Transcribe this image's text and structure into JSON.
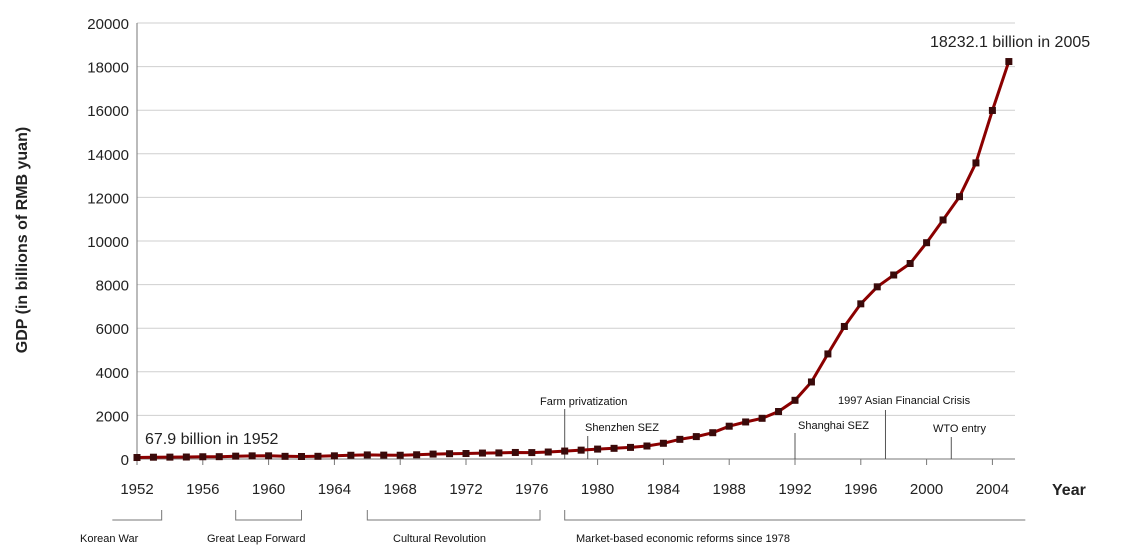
{
  "chart_data": {
    "type": "line",
    "xlabel": "Year",
    "ylabel": "GDP (in billions of RMB yuan)",
    "ylim": [
      0,
      20000
    ],
    "yticks": [
      0,
      2000,
      4000,
      6000,
      8000,
      10000,
      12000,
      14000,
      16000,
      18000,
      20000
    ],
    "xlim": [
      1952,
      2005
    ],
    "xticks": [
      1952,
      1956,
      1960,
      1964,
      1968,
      1972,
      1976,
      1980,
      1984,
      1988,
      1992,
      1996,
      2000,
      2004
    ],
    "grid": "horizontal",
    "series": [
      {
        "color": "#8b0000",
        "x": [
          1952,
          1953,
          1954,
          1955,
          1956,
          1957,
          1958,
          1959,
          1960,
          1961,
          1962,
          1963,
          1964,
          1965,
          1966,
          1967,
          1968,
          1969,
          1970,
          1971,
          1972,
          1973,
          1974,
          1975,
          1976,
          1977,
          1978,
          1979,
          1980,
          1981,
          1982,
          1983,
          1984,
          1985,
          1986,
          1987,
          1988,
          1989,
          1990,
          1991,
          1992,
          1993,
          1994,
          1995,
          1996,
          1997,
          1998,
          1999,
          2000,
          2001,
          2002,
          2003,
          2004,
          2005
        ],
        "y": [
          67.9,
          82.4,
          85.9,
          91.0,
          102.8,
          106.8,
          130.7,
          143.9,
          145.7,
          122.0,
          114.9,
          123.3,
          145.4,
          171.6,
          186.8,
          177.4,
          172.3,
          193.8,
          225.3,
          242.6,
          251.8,
          272.1,
          279.0,
          299.7,
          294.4,
          320.2,
          364.5,
          406.3,
          454.6,
          489.2,
          532.3,
          596.3,
          720.8,
          901.6,
          1027.5,
          1205.9,
          1504.3,
          1699.2,
          1866.8,
          2178.2,
          2692.4,
          3533.4,
          4819.8,
          6079.4,
          7117.7,
          7897.3,
          8440.2,
          8967.7,
          9921.5,
          10965.5,
          12033.3,
          13582.3,
          15987.8,
          18232.1
        ]
      }
    ],
    "annotations": {
      "start": "67.9 billion in 1952",
      "end": "18232.1 billion in 2005",
      "events": [
        {
          "label": "Farm privatization",
          "year": 1978
        },
        {
          "label": "Shenzhen SEZ",
          "year": 1979.4
        },
        {
          "label": "1997 Asian Financial Crisis",
          "year": 1997.5
        },
        {
          "label": "Shanghai SEZ",
          "year": 1992
        },
        {
          "label": "WTO entry",
          "year": 2001.5
        }
      ],
      "periods": [
        {
          "label": "Korean War",
          "start": 1950.5,
          "end": 1953.5,
          "open_left": true,
          "open_right": false
        },
        {
          "label": "Great Leap Forward",
          "start": 1958,
          "end": 1962,
          "open_left": false,
          "open_right": false
        },
        {
          "label": "Cultural Revolution",
          "start": 1966,
          "end": 1976.5,
          "open_left": false,
          "open_right": false
        },
        {
          "label": "Market-based economic reforms since 1978",
          "start": 1978,
          "end": 2006,
          "open_left": false,
          "open_right": true
        }
      ]
    }
  }
}
